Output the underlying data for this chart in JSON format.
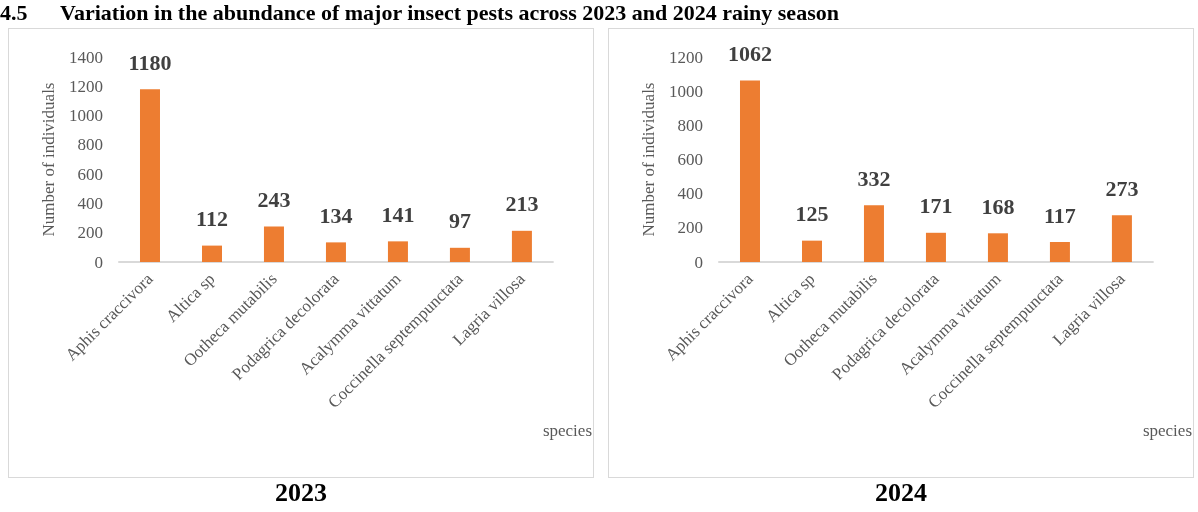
{
  "chart_data": [
    {
      "type": "bar",
      "title": "2023",
      "xlabel": "species",
      "ylabel": "Number of individuals",
      "annotations": [
        "4.5      Variation in the abundance of major insect pests across 2023 and 2024 rainy season"
      ],
      "categories": [
        "Aphis craccivora",
        "Altica sp",
        "Ootheca mutabilis",
        "Podagrica decolorata",
        "Acalymma vittatum",
        "Coccinella septempunctata",
        "Lagria villosa"
      ],
      "values": [
        1180,
        112,
        243,
        134,
        141,
        97,
        213
      ],
      "color": "#ed7d31",
      "ylim": [
        0,
        1400
      ],
      "yticks": [
        0,
        200,
        400,
        600,
        800,
        1000,
        1200,
        1400
      ],
      "grid": false,
      "data_labels": true
    },
    {
      "type": "bar",
      "title": "2024",
      "xlabel": "species",
      "ylabel": "Number of individuals",
      "categories": [
        "Aphis craccivora",
        "Altica sp",
        "Ootheca mutabilis",
        "Podagrica decolorata",
        "Acalymma vittatum",
        "Coccinella septempunctata",
        "Lagria villosa"
      ],
      "values": [
        1062,
        125,
        332,
        171,
        168,
        117,
        273
      ],
      "color": "#ed7d31",
      "ylim": [
        0,
        1200
      ],
      "yticks": [
        0,
        200,
        400,
        600,
        800,
        1000,
        1200
      ],
      "grid": false,
      "data_labels": true
    }
  ]
}
